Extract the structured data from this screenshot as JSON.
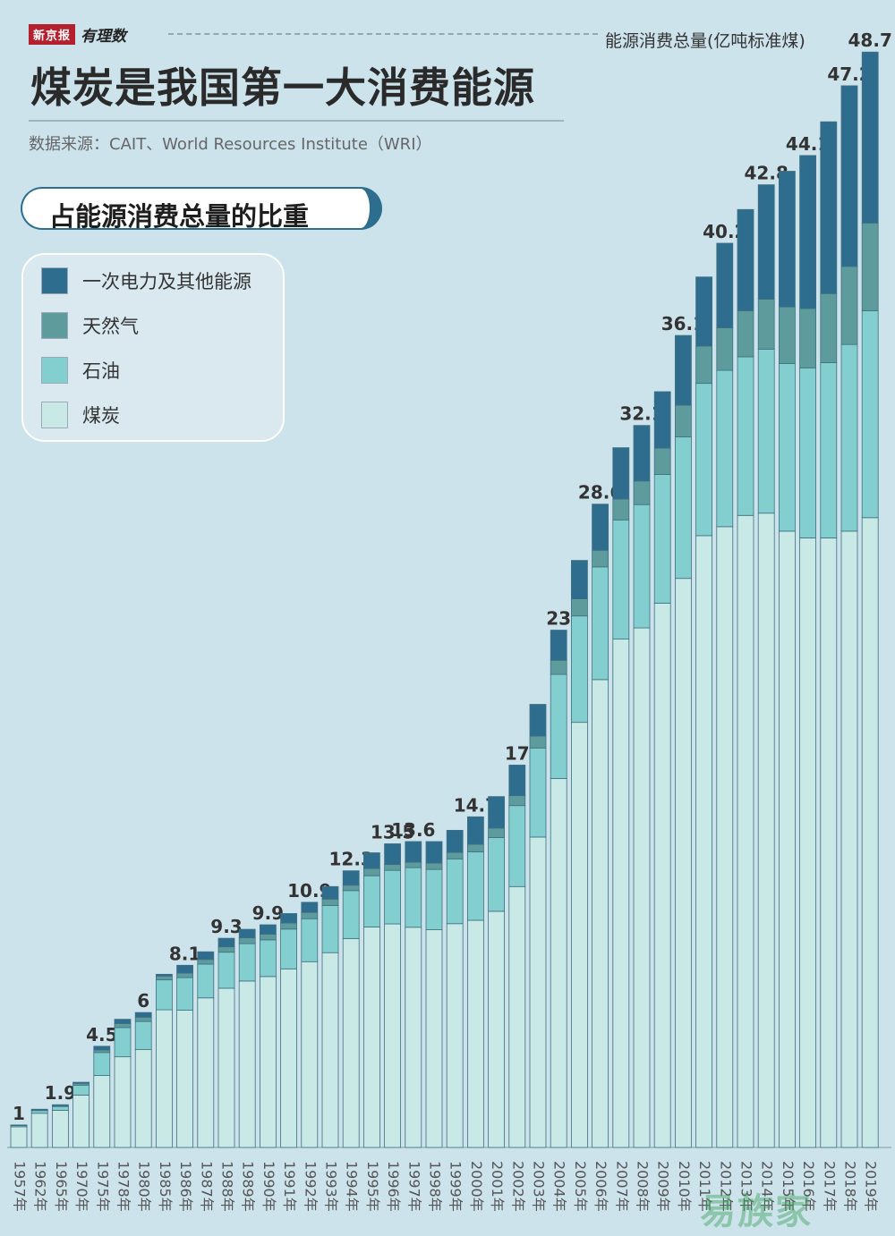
{
  "brand": {
    "logo": "新京报",
    "column": "有理数"
  },
  "header": {
    "title": "煤炭是我国第一大消费能源",
    "source": "数据来源：CAIT、World Resources Institute（WRI）",
    "subtitle": "占能源消费总量的比重",
    "unit": "能源消费总量(亿吨标准煤)"
  },
  "legend": [
    {
      "label": "一次电力及其他能源",
      "color": "#2f6d8f"
    },
    {
      "label": "天然气",
      "color": "#5e9b9d"
    },
    {
      "label": "石油",
      "color": "#83cfcf"
    },
    {
      "label": "煤炭",
      "color": "#c8e9e6"
    }
  ],
  "watermark": "易族家",
  "chart_data": {
    "type": "bar",
    "stacked": true,
    "ylabel": "能源消费总量(亿吨标准煤)",
    "categories": [
      "1957年",
      "1962年",
      "1965年",
      "1970年",
      "1975年",
      "1978年",
      "1980年",
      "1985年",
      "1986年",
      "1987年",
      "1988年",
      "1989年",
      "1990年",
      "1991年",
      "1992年",
      "1993年",
      "1994年",
      "1995年",
      "1996年",
      "1997年",
      "1998年",
      "1999年",
      "2000年",
      "2001年",
      "2002年",
      "2003年",
      "2004年",
      "2005年",
      "2006年",
      "2007年",
      "2008年",
      "2009年",
      "2010年",
      "2011年",
      "2012年",
      "2013年",
      "2014年",
      "2015年",
      "2016年",
      "2017年",
      "2018年",
      "2019年"
    ],
    "totals": [
      1,
      1.7,
      1.9,
      2.9,
      4.5,
      5.7,
      6,
      7.7,
      8.1,
      8.7,
      9.3,
      9.7,
      9.9,
      10.4,
      10.9,
      11.6,
      12.3,
      13.1,
      13.5,
      13.6,
      13.6,
      14.1,
      14.7,
      15.6,
      17,
      19.7,
      23,
      26.1,
      28.6,
      31.1,
      32.1,
      33.6,
      36.1,
      38.7,
      40.2,
      41.7,
      42.8,
      43.4,
      44.1,
      45.6,
      47.2,
      48.7
    ],
    "total_labels": [
      "1",
      "",
      "1.9",
      "",
      "4.5",
      "",
      "6",
      "",
      "8.1",
      "",
      "9.3",
      "",
      "9.9",
      "",
      "10.9",
      "",
      "12.3",
      "",
      "13.5",
      "13.6",
      "",
      "",
      "14.7",
      "",
      "17",
      "",
      "23",
      "",
      "28.6",
      "",
      "32.1",
      "",
      "36.1",
      "",
      "40.2",
      "",
      "42.8",
      "",
      "44.1",
      "",
      "47.2",
      "48.7"
    ],
    "series": [
      {
        "name": "煤炭",
        "color": "#c8e9e6",
        "values": [
          0.92,
          1.52,
          1.65,
          2.33,
          3.2,
          4.03,
          4.35,
          6.12,
          6.1,
          6.65,
          7.08,
          7.4,
          7.6,
          7.94,
          8.26,
          8.66,
          9.29,
          9.8,
          9.94,
          9.79,
          9.68,
          9.95,
          10.1,
          10.5,
          11.6,
          13.8,
          16.4,
          18.9,
          20.8,
          22.6,
          23.1,
          24.2,
          25.3,
          27.2,
          27.6,
          28.1,
          28.2,
          27.4,
          27.1,
          27.1,
          27.4,
          28.0
        ]
      },
      {
        "name": "石油",
        "color": "#83cfcf",
        "values": [
          0.05,
          0.12,
          0.17,
          0.44,
          1.02,
          1.3,
          1.25,
          1.33,
          1.45,
          1.5,
          1.6,
          1.66,
          1.63,
          1.77,
          1.91,
          2.1,
          2.13,
          2.28,
          2.38,
          2.65,
          2.68,
          2.88,
          3.04,
          3.28,
          3.6,
          3.96,
          4.63,
          4.73,
          5.01,
          5.3,
          5.48,
          5.72,
          6.29,
          6.77,
          6.95,
          7.05,
          7.29,
          7.45,
          7.56,
          7.79,
          8.3,
          9.2
        ]
      },
      {
        "name": "天然气",
        "color": "#5e9b9d",
        "values": [
          0.01,
          0.02,
          0.04,
          0.08,
          0.11,
          0.18,
          0.19,
          0.17,
          0.2,
          0.21,
          0.24,
          0.26,
          0.25,
          0.27,
          0.28,
          0.28,
          0.24,
          0.32,
          0.26,
          0.24,
          0.28,
          0.29,
          0.34,
          0.42,
          0.44,
          0.53,
          0.63,
          0.76,
          0.74,
          0.93,
          1.05,
          1.17,
          1.41,
          1.66,
          1.89,
          2.05,
          2.22,
          2.52,
          2.64,
          3.07,
          3.47,
          3.9
        ]
      },
      {
        "name": "一次电力及其他能源",
        "color": "#2f6d8f",
        "values": [
          0.02,
          0.04,
          0.04,
          0.05,
          0.17,
          0.19,
          0.21,
          0.08,
          0.35,
          0.34,
          0.38,
          0.38,
          0.42,
          0.42,
          0.45,
          0.56,
          0.64,
          0.7,
          0.92,
          0.92,
          0.96,
          0.98,
          1.22,
          1.4,
          1.36,
          1.41,
          1.34,
          1.71,
          2.05,
          2.28,
          2.47,
          2.51,
          3.1,
          3.07,
          3.76,
          4.5,
          5.09,
          6.03,
          6.8,
          7.64,
          8.03,
          7.6
        ]
      }
    ]
  }
}
